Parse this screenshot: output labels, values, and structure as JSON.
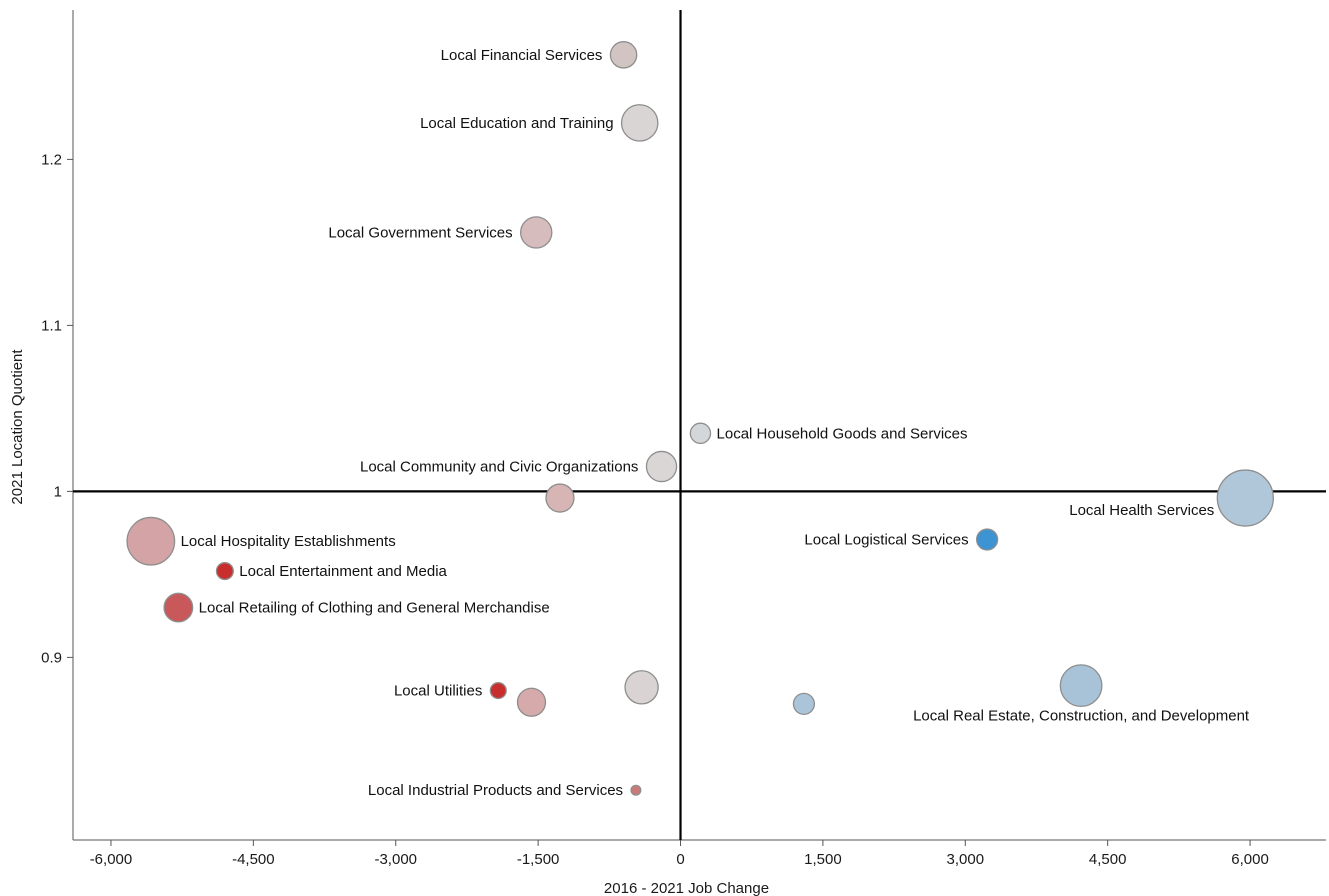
{
  "chart_data": {
    "type": "scatter",
    "subtype": "bubble",
    "title": "",
    "xlabel": "2016 - 2021 Job Change",
    "ylabel": "2021 Location Quotient",
    "xlim": [
      -6400,
      6800
    ],
    "ylim": [
      0.79,
      1.29
    ],
    "xticks": [
      -6000,
      -4500,
      -3000,
      -1500,
      0,
      1500,
      3000,
      4500,
      6000
    ],
    "xtick_labels": [
      "-6,000",
      "-4,500",
      "-3,000",
      "-1,500",
      "0",
      "1,500",
      "3,000",
      "4,500",
      "6,000"
    ],
    "yticks": [
      0.9,
      1.0,
      1.1,
      1.2
    ],
    "ytick_labels": [
      "0.9",
      "1",
      "1.1",
      "1.2"
    ],
    "reference_lines": {
      "x": 0,
      "y": 1.0
    },
    "grid": false,
    "legend": "none",
    "points": [
      {
        "label": "Local Financial Services",
        "x": -600,
        "y": 1.263,
        "size": 0.22,
        "color": "#d3c4c4",
        "label_side": "left"
      },
      {
        "label": "Local Education and Training",
        "x": -430,
        "y": 1.222,
        "size": 0.42,
        "color": "#d9d5d5",
        "label_side": "left"
      },
      {
        "label": "Local Government Services",
        "x": -1520,
        "y": 1.156,
        "size": 0.31,
        "color": "#d6bcbc",
        "label_side": "left"
      },
      {
        "label": "Local Household Goods and Services",
        "x": 210,
        "y": 1.035,
        "size": 0.13,
        "color": "#d4d7da",
        "label_side": "right"
      },
      {
        "label": "Local Community and Civic Organizations",
        "x": -200,
        "y": 1.015,
        "size": 0.29,
        "color": "#dad6d6",
        "label_side": "left"
      },
      {
        "label": "",
        "x": -1270,
        "y": 0.996,
        "size": 0.25,
        "color": "#d7b5b5"
      },
      {
        "label": "Local Health Services",
        "x": 5950,
        "y": 0.996,
        "size": 1.0,
        "color": "#afc7d9",
        "label_side": "below-left"
      },
      {
        "label": "Local Logistical Services",
        "x": 3230,
        "y": 0.971,
        "size": 0.14,
        "color": "#3e93d2",
        "label_side": "left"
      },
      {
        "label": "Local Hospitality Establishments",
        "x": -5580,
        "y": 0.97,
        "size": 0.72,
        "color": "#d4a3a5",
        "label_side": "right"
      },
      {
        "label": "Local Entertainment and Media",
        "x": -4800,
        "y": 0.952,
        "size": 0.09,
        "color": "#c82e2e",
        "label_side": "right"
      },
      {
        "label": "Local Retailing of Clothing and General Merchandise",
        "x": -5290,
        "y": 0.93,
        "size": 0.26,
        "color": "#c9585a",
        "label_side": "right"
      },
      {
        "label": "Local Utilities",
        "x": -1920,
        "y": 0.88,
        "size": 0.08,
        "color": "#c82e2e",
        "label_side": "left"
      },
      {
        "label": "",
        "x": -1570,
        "y": 0.873,
        "size": 0.25,
        "color": "#d6aaaa"
      },
      {
        "label": "",
        "x": -410,
        "y": 0.882,
        "size": 0.35,
        "color": "#d9d3d3"
      },
      {
        "label": "",
        "x": 1300,
        "y": 0.872,
        "size": 0.14,
        "color": "#aac4d9"
      },
      {
        "label": "Local Real Estate, Construction, and Development",
        "x": 4220,
        "y": 0.883,
        "size": 0.55,
        "color": "#a8c3d8",
        "label_side": "below"
      },
      {
        "label": "Local Industrial Products and Services",
        "x": -470,
        "y": 0.82,
        "size": 0.03,
        "color": "#c97a7a",
        "label_side": "left"
      }
    ]
  }
}
